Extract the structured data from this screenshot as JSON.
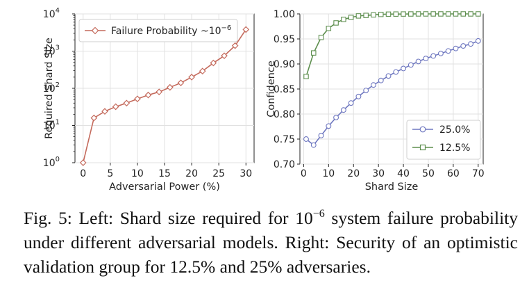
{
  "chart_data": [
    {
      "type": "line",
      "xlabel": "Adversarial Power (%)",
      "ylabel": "Required Shard Size",
      "yscale": "log",
      "xlim": [
        -1.5,
        31.5
      ],
      "ylim": [
        1,
        10000
      ],
      "xticks": [
        "0",
        "5",
        "10",
        "15",
        "20",
        "25",
        "30"
      ],
      "yticks": [
        {
          "base": "10",
          "exp": "0"
        },
        {
          "base": "10",
          "exp": "1"
        },
        {
          "base": "10",
          "exp": "2"
        },
        {
          "base": "10",
          "exp": "3"
        },
        {
          "base": "10",
          "exp": "4"
        }
      ],
      "grid": true,
      "legend_position": "top-left",
      "series": [
        {
          "name": "Failure Probability ~10",
          "name_sup": "−6",
          "color": "#c46a5c",
          "marker": "diamond",
          "x": [
            0,
            2,
            4,
            6,
            8,
            10,
            12,
            14,
            16,
            18,
            20,
            22,
            24,
            26,
            28,
            30
          ],
          "y": [
            1,
            16,
            24,
            32,
            40,
            52,
            66,
            80,
            106,
            140,
            200,
            290,
            480,
            750,
            1400,
            3800
          ]
        }
      ]
    },
    {
      "type": "line",
      "xlabel": "Shard Size",
      "ylabel": "Confidence",
      "xlim": [
        -1.5,
        72
      ],
      "ylim": [
        0.7,
        1.0
      ],
      "xticks": [
        "0",
        "10",
        "20",
        "30",
        "40",
        "50",
        "60",
        "70"
      ],
      "yticks": [
        "0.70",
        "0.75",
        "0.80",
        "0.85",
        "0.90",
        "0.95",
        "1.00"
      ],
      "grid": true,
      "legend_position": "bottom-right",
      "series": [
        {
          "name": "25.0%",
          "color": "#6f78c0",
          "marker": "circle",
          "x": [
            1,
            4,
            7,
            10,
            13,
            16,
            19,
            22,
            25,
            28,
            31,
            34,
            37,
            40,
            43,
            46,
            49,
            52,
            55,
            58,
            61,
            64,
            67,
            70
          ],
          "y": [
            0.75,
            0.738,
            0.757,
            0.776,
            0.793,
            0.808,
            0.822,
            0.835,
            0.847,
            0.858,
            0.867,
            0.876,
            0.884,
            0.891,
            0.898,
            0.905,
            0.911,
            0.916,
            0.921,
            0.926,
            0.931,
            0.936,
            0.94,
            0.946
          ]
        },
        {
          "name": "12.5%",
          "color": "#5e8f4f",
          "marker": "square",
          "x": [
            1,
            4,
            7,
            10,
            13,
            16,
            19,
            22,
            25,
            28,
            31,
            34,
            37,
            40,
            43,
            46,
            49,
            52,
            55,
            58,
            61,
            64,
            67,
            70
          ],
          "y": [
            0.875,
            0.922,
            0.953,
            0.971,
            0.982,
            0.989,
            0.993,
            0.996,
            0.997,
            0.998,
            0.999,
            0.9995,
            0.9997,
            0.9998,
            0.9999,
            1.0,
            1.0,
            1.0,
            1.0,
            1.0,
            1.0,
            1.0,
            1.0,
            1.0
          ]
        }
      ]
    }
  ],
  "caption": {
    "label": "Fig. 5:",
    "text1": " Left: Shard size required for ",
    "base": "10",
    "exp": "−6",
    "text2": " system failure probability under different adversarial models. Right: Security of an optimistic validation group for 12.5% and 25% adversaries."
  }
}
